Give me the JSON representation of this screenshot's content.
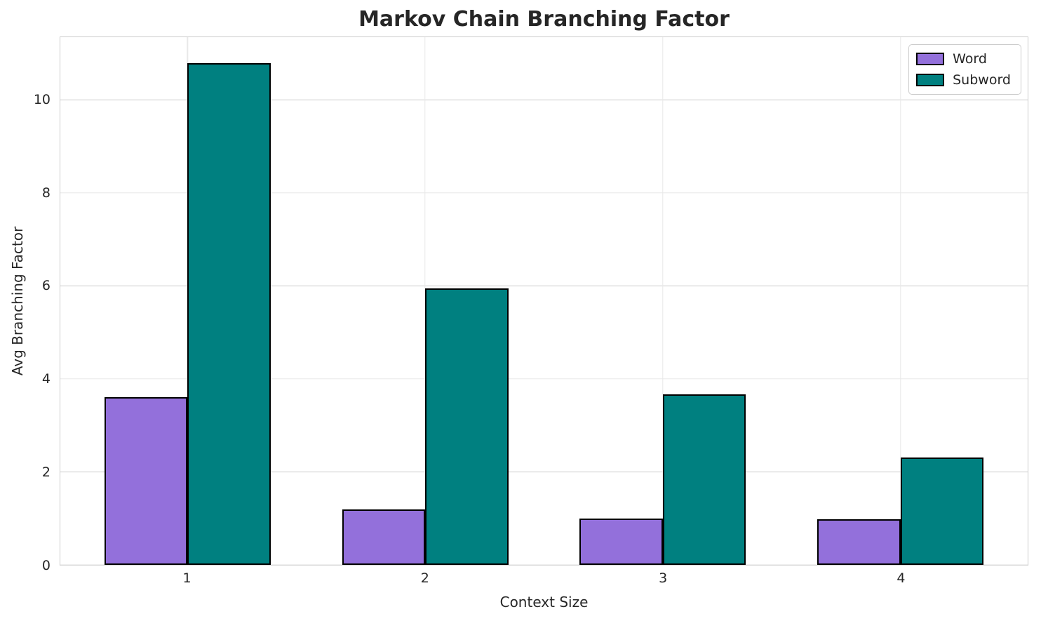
{
  "chart_data": {
    "type": "bar",
    "title": "Markov Chain Branching Factor",
    "xlabel": "Context Size",
    "ylabel": "Avg Branching Factor",
    "categories": [
      1,
      2,
      3,
      4
    ],
    "series": [
      {
        "name": "Word",
        "color": "#9370DB",
        "values": [
          3.61,
          1.19,
          1.0,
          0.98
        ]
      },
      {
        "name": "Subword",
        "color": "#008080",
        "values": [
          10.79,
          5.94,
          3.67,
          2.31
        ]
      }
    ],
    "bar_width": 0.35,
    "bar_edge_color": "#000000",
    "yticks": [
      0,
      2,
      4,
      6,
      8,
      10
    ],
    "ylim": [
      0,
      11.35
    ],
    "xlim": [
      0.465,
      4.535
    ],
    "grid": true,
    "grid_color": "#e8e8e8",
    "spine_color": "#cccccc",
    "text_color": "#262626",
    "legend_position": "upper right"
  }
}
